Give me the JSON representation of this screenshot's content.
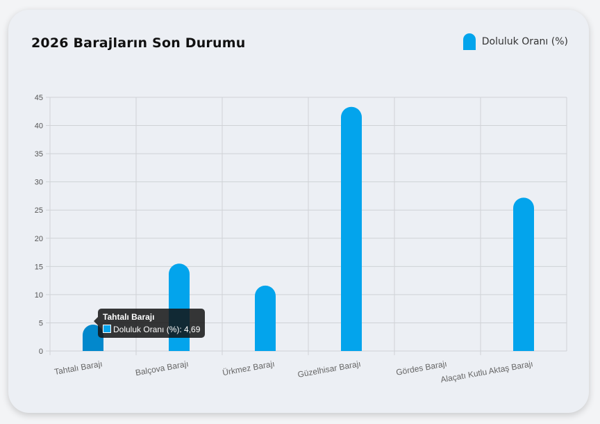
{
  "title": "2026 Barajların Son Durumu",
  "tooltip": {
    "title": "Tahtalı Barajı",
    "label": "Doluluk Oranı (%): 4,69"
  },
  "chart_data": {
    "type": "bar",
    "title": "2026 Barajların Son Durumu",
    "categories": [
      "Tahtalı Barajı",
      "Balçova Barajı",
      "Ürkmez Barajı",
      "Güzelhisar Barajı",
      "Gördes Barajı",
      "Alaçatı Kutlu Aktaş Barajı"
    ],
    "series": [
      {
        "name": "Doluluk Oranı (%)",
        "values": [
          4.69,
          15.5,
          11.6,
          43.3,
          0,
          27.2
        ],
        "color": "#03a4ec"
      }
    ],
    "ylim": [
      0,
      45
    ],
    "yticks": [
      0,
      5,
      10,
      15,
      20,
      25,
      30,
      35,
      40,
      45
    ],
    "grid": true,
    "legend": "top-right",
    "highlight_color": "#0288cc"
  }
}
